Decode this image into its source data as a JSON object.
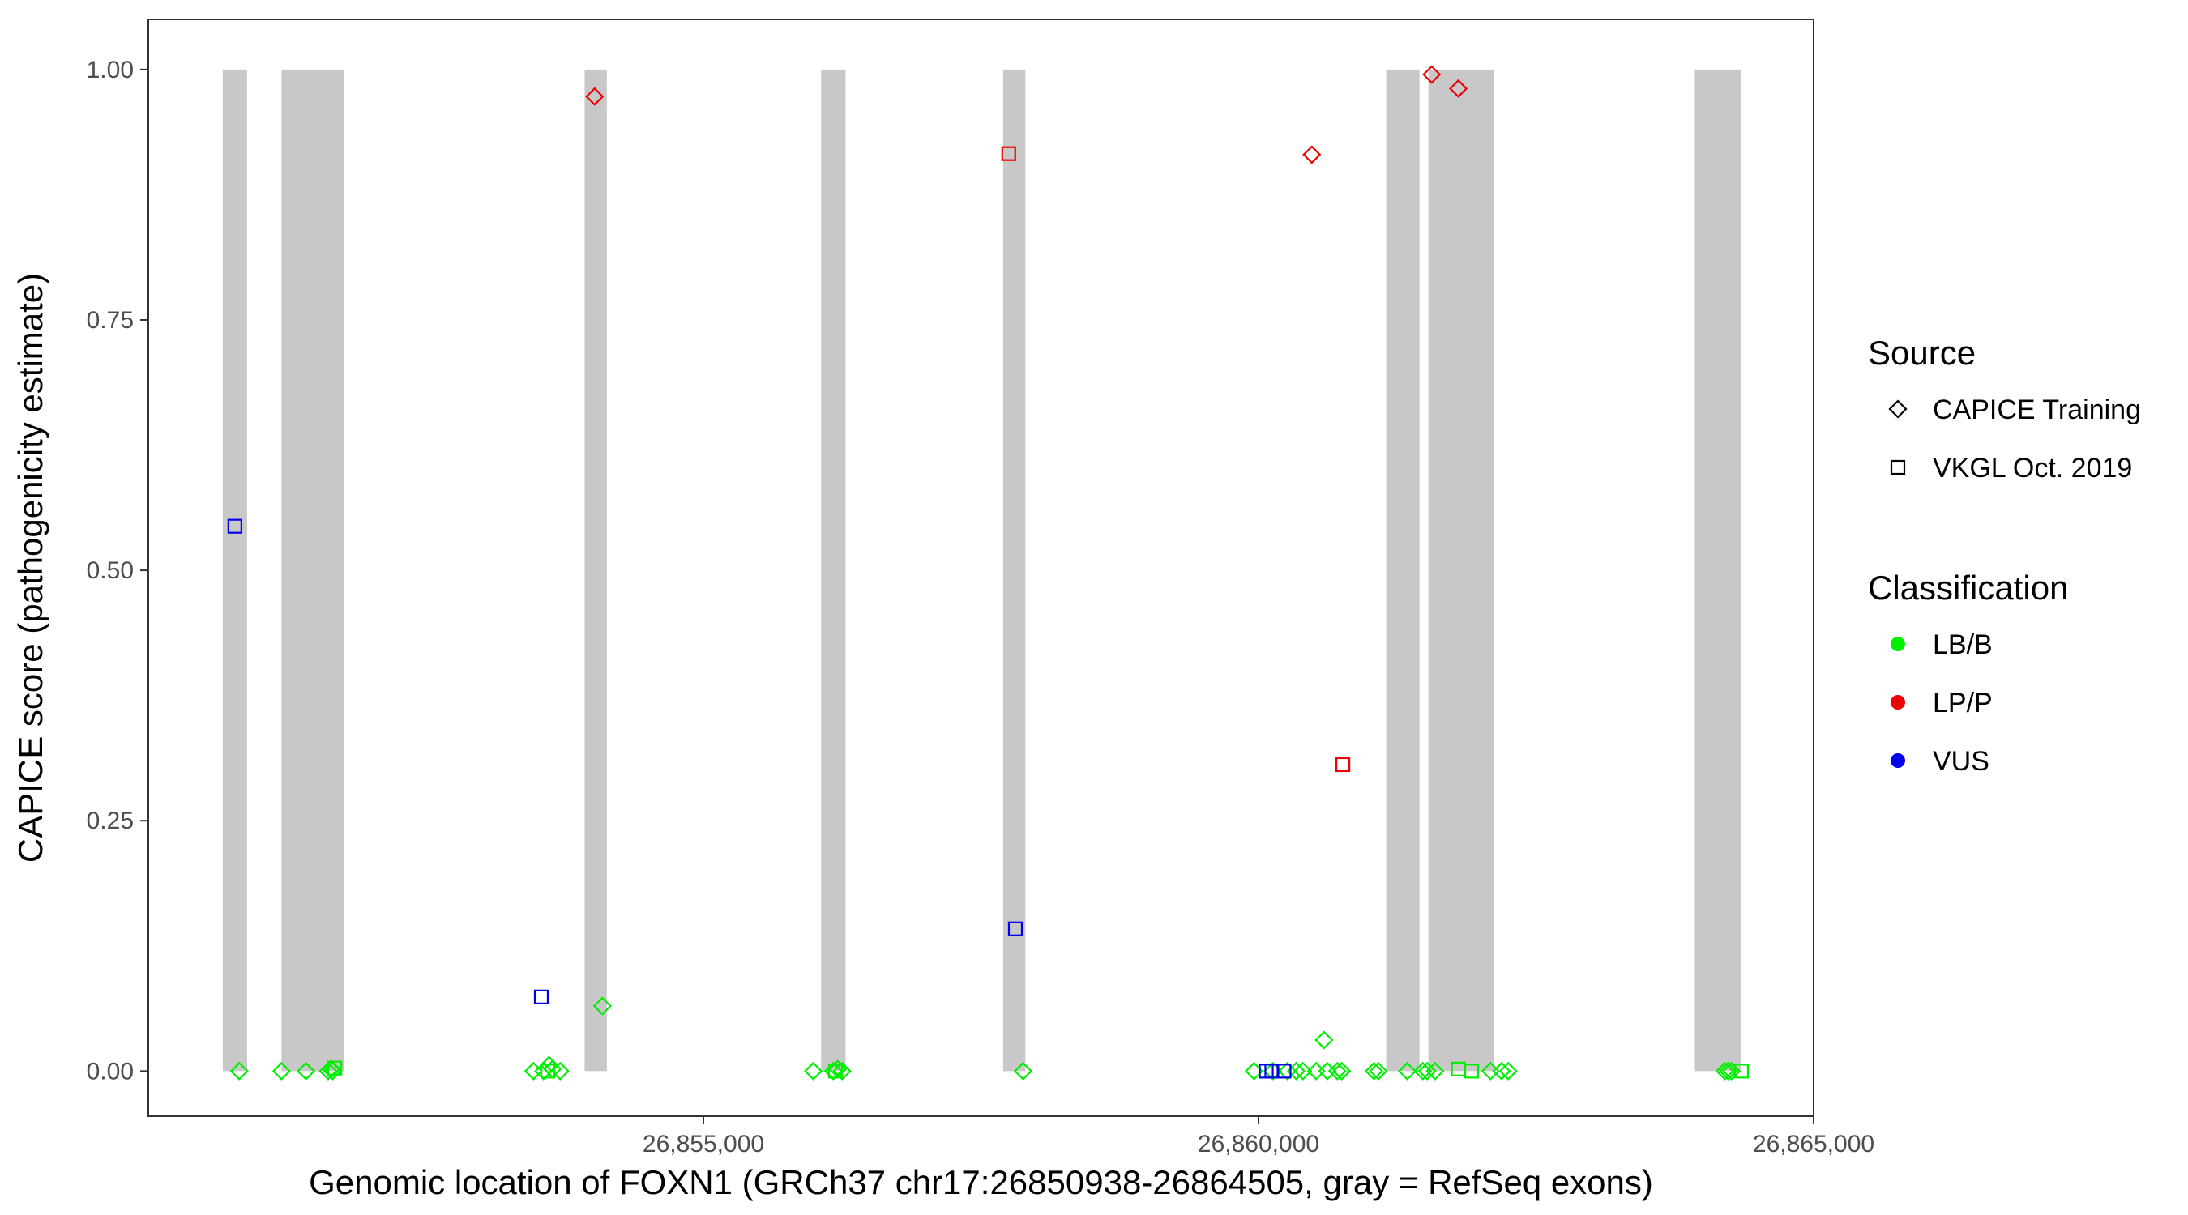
{
  "chart_data": {
    "type": "scatter",
    "xlabel": "Genomic location of FOXN1 (GRCh37 chr17:26850938-26864505, gray = RefSeq exons)",
    "ylabel": "CAPICE score (pathogenicity estimate)",
    "xlim": [
      26850000,
      26865000
    ],
    "ylim": [
      -0.045,
      1.05
    ],
    "x_ticks": [
      26855000,
      26860000,
      26865000
    ],
    "x_tick_labels": [
      "26,855,000",
      "26,860,000",
      "26,865,000"
    ],
    "y_ticks": [
      0,
      0.25,
      0.5,
      0.75,
      1.0
    ],
    "y_tick_labels": [
      "0.00",
      "0.25",
      "0.50",
      "0.75",
      "1.00"
    ],
    "grid": false,
    "legend_position": "right",
    "exons": [
      {
        "start": 26850670,
        "end": 26850890
      },
      {
        "start": 26851200,
        "end": 26851760
      },
      {
        "start": 26853930,
        "end": 26854130
      },
      {
        "start": 26856060,
        "end": 26856280
      },
      {
        "start": 26857700,
        "end": 26857900
      },
      {
        "start": 26861150,
        "end": 26861450
      },
      {
        "start": 26861530,
        "end": 26862120
      },
      {
        "start": 26863930,
        "end": 26864350
      }
    ],
    "legend": {
      "source_title": "Source",
      "source_items": [
        {
          "label": "CAPICE Training",
          "shape": "diamond"
        },
        {
          "label": "VKGL Oct. 2019",
          "shape": "square"
        }
      ],
      "class_title": "Classification",
      "class_items": [
        {
          "label": "LB/B",
          "color": "#00ee00"
        },
        {
          "label": "LP/P",
          "color": "#ee0000"
        },
        {
          "label": "VUS",
          "color": "#0000ee"
        }
      ]
    },
    "colors": {
      "LB/B": "#00ee00",
      "LP/P": "#ee0000",
      "VUS": "#0000ee",
      "exon": "#c8c8c8"
    },
    "series": [
      {
        "name": "CAPICE Training",
        "shape": "diamond",
        "points": [
          {
            "x": 26850820,
            "y": 0.0,
            "class": "LB/B"
          },
          {
            "x": 26851200,
            "y": 0.0,
            "class": "LB/B"
          },
          {
            "x": 26851420,
            "y": 0.0,
            "class": "LB/B"
          },
          {
            "x": 26851620,
            "y": 0.0,
            "class": "LB/B"
          },
          {
            "x": 26851650,
            "y": 0.002,
            "class": "LB/B"
          },
          {
            "x": 26851660,
            "y": 0.0,
            "class": "LB/B"
          },
          {
            "x": 26853470,
            "y": 0.0,
            "class": "LB/B"
          },
          {
            "x": 26853560,
            "y": 0.0,
            "class": "LB/B"
          },
          {
            "x": 26853610,
            "y": 0.006,
            "class": "LB/B"
          },
          {
            "x": 26853640,
            "y": 0.002,
            "class": "LB/B"
          },
          {
            "x": 26853710,
            "y": 0.0,
            "class": "LB/B"
          },
          {
            "x": 26854020,
            "y": 0.973,
            "class": "LP/P"
          },
          {
            "x": 26854090,
            "y": 0.065,
            "class": "LB/B"
          },
          {
            "x": 26855990,
            "y": 0.0,
            "class": "LB/B"
          },
          {
            "x": 26856170,
            "y": 0.0,
            "class": "LB/B"
          },
          {
            "x": 26856210,
            "y": 0.002,
            "class": "LB/B"
          },
          {
            "x": 26856250,
            "y": 0.0,
            "class": "LB/B"
          },
          {
            "x": 26857880,
            "y": 0.0,
            "class": "LB/B"
          },
          {
            "x": 26859960,
            "y": 0.0,
            "class": "LB/B"
          },
          {
            "x": 26860130,
            "y": 0.0,
            "class": "LB/B"
          },
          {
            "x": 26860260,
            "y": 0.0,
            "class": "LB/B"
          },
          {
            "x": 26860340,
            "y": 0.0,
            "class": "LB/B"
          },
          {
            "x": 26860400,
            "y": 0.0,
            "class": "LB/B"
          },
          {
            "x": 26860480,
            "y": 0.915,
            "class": "LP/P"
          },
          {
            "x": 26860520,
            "y": 0.0,
            "class": "LB/B"
          },
          {
            "x": 26860590,
            "y": 0.031,
            "class": "LB/B"
          },
          {
            "x": 26860620,
            "y": 0.0,
            "class": "LB/B"
          },
          {
            "x": 26860710,
            "y": 0.0,
            "class": "LB/B"
          },
          {
            "x": 26860750,
            "y": 0.0,
            "class": "LB/B"
          },
          {
            "x": 26861040,
            "y": 0.0,
            "class": "LB/B"
          },
          {
            "x": 26861080,
            "y": 0.0,
            "class": "LB/B"
          },
          {
            "x": 26861340,
            "y": 0.0,
            "class": "LB/B"
          },
          {
            "x": 26861480,
            "y": 0.0,
            "class": "LB/B"
          },
          {
            "x": 26861520,
            "y": 0.0,
            "class": "LB/B"
          },
          {
            "x": 26861560,
            "y": 0.995,
            "class": "LP/P"
          },
          {
            "x": 26861590,
            "y": 0.0,
            "class": "LB/B"
          },
          {
            "x": 26861800,
            "y": 0.981,
            "class": "LP/P"
          },
          {
            "x": 26862090,
            "y": 0.0,
            "class": "LB/B"
          },
          {
            "x": 26862190,
            "y": 0.0,
            "class": "LB/B"
          },
          {
            "x": 26862250,
            "y": 0.0,
            "class": "LB/B"
          },
          {
            "x": 26864200,
            "y": 0.0,
            "class": "LB/B"
          },
          {
            "x": 26864230,
            "y": 0.0,
            "class": "LB/B"
          },
          {
            "x": 26864260,
            "y": 0.0,
            "class": "LB/B"
          }
        ]
      },
      {
        "name": "VKGL Oct. 2019",
        "shape": "square",
        "points": [
          {
            "x": 26850780,
            "y": 0.544,
            "class": "VUS"
          },
          {
            "x": 26851680,
            "y": 0.003,
            "class": "LB/B"
          },
          {
            "x": 26853540,
            "y": 0.074,
            "class": "VUS"
          },
          {
            "x": 26853600,
            "y": 0.0,
            "class": "LB/B"
          },
          {
            "x": 26856190,
            "y": 0.0,
            "class": "LB/B"
          },
          {
            "x": 26857750,
            "y": 0.916,
            "class": "LP/P"
          },
          {
            "x": 26857810,
            "y": 0.142,
            "class": "VUS"
          },
          {
            "x": 26860070,
            "y": 0.0,
            "class": "VUS"
          },
          {
            "x": 26860120,
            "y": 0.0,
            "class": "VUS"
          },
          {
            "x": 26860230,
            "y": 0.0,
            "class": "VUS"
          },
          {
            "x": 26860760,
            "y": 0.306,
            "class": "LP/P"
          },
          {
            "x": 26861800,
            "y": 0.002,
            "class": "LB/B"
          },
          {
            "x": 26861920,
            "y": 0.0,
            "class": "LB/B"
          },
          {
            "x": 26864350,
            "y": 0.0,
            "class": "LB/B"
          }
        ]
      }
    ]
  }
}
